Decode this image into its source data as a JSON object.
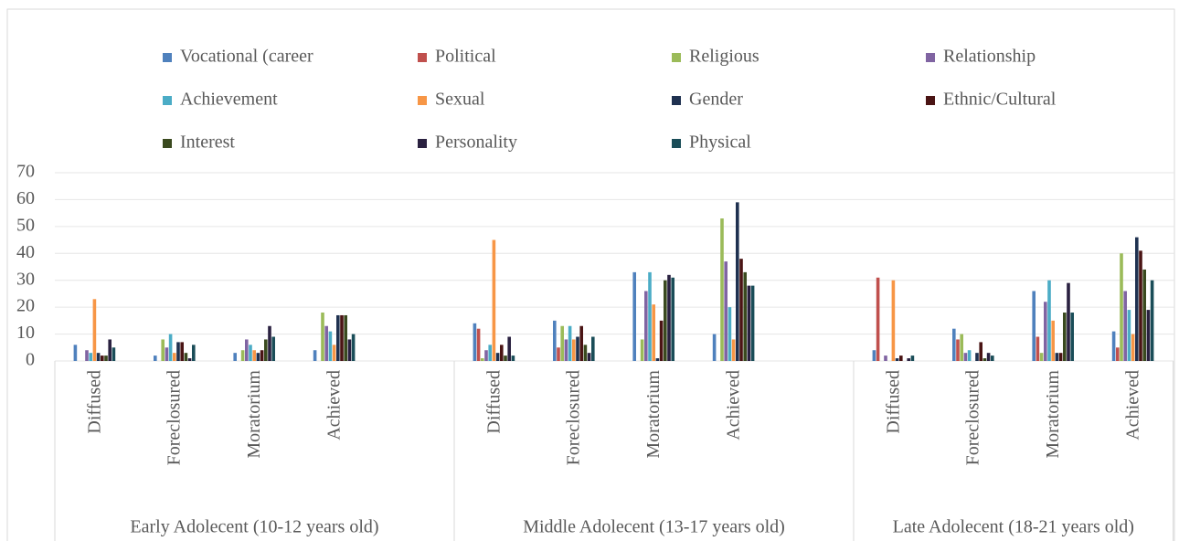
{
  "chart_data": {
    "type": "bar",
    "groups": [
      {
        "name": "Early Adolecent (10-12 years old)",
        "size": 5
      },
      {
        "name": "Middle Adolecent (13-17 years old)",
        "size": 5
      },
      {
        "name": "Late Adolecent (18-21 years old)",
        "size": 4
      }
    ],
    "categories": [
      "Diffused",
      "Foreclosured",
      "Moratorium",
      "Achieved",
      null,
      "Diffused",
      "Foreclosured",
      "Moratorium",
      "Achieved",
      null,
      "Diffused",
      "Foreclosured",
      "Moratorium",
      "Achieved"
    ],
    "series": [
      {
        "name": "Vocational (career",
        "color": "#4f81bd",
        "values": [
          6,
          2,
          3,
          4,
          null,
          14,
          15,
          33,
          10,
          null,
          4,
          12,
          26,
          11
        ]
      },
      {
        "name": "Political",
        "color": "#c0504d",
        "values": [
          0,
          0,
          0,
          0,
          null,
          12,
          5,
          0,
          0,
          null,
          31,
          8,
          9,
          5
        ]
      },
      {
        "name": "Religious",
        "color": "#9bbb59",
        "values": [
          0,
          8,
          4,
          18,
          null,
          1,
          13,
          8,
          53,
          null,
          0,
          10,
          3,
          40
        ]
      },
      {
        "name": "Relationship",
        "color": "#8064a2",
        "values": [
          4,
          5,
          8,
          13,
          null,
          4,
          8,
          26,
          37,
          null,
          2,
          3,
          22,
          26
        ]
      },
      {
        "name": "Achievement",
        "color": "#4bacc6",
        "values": [
          3,
          10,
          6,
          11,
          null,
          6,
          13,
          33,
          20,
          null,
          0,
          4,
          30,
          19
        ]
      },
      {
        "name": "Sexual",
        "color": "#f79646",
        "values": [
          23,
          3,
          4,
          6,
          null,
          45,
          8,
          21,
          8,
          null,
          30,
          0,
          15,
          10
        ]
      },
      {
        "name": "Gender",
        "color": "#1f3150",
        "values": [
          3,
          7,
          3,
          17,
          null,
          3,
          9,
          1,
          59,
          null,
          1,
          3,
          3,
          46
        ]
      },
      {
        "name": "Ethnic/Cultural",
        "color": "#4a1414",
        "values": [
          2,
          7,
          4,
          17,
          null,
          6,
          13,
          15,
          38,
          null,
          2,
          7,
          3,
          41
        ]
      },
      {
        "name": "Interest",
        "color": "#3a4a1f",
        "values": [
          2,
          3,
          8,
          17,
          null,
          2,
          6,
          30,
          33,
          null,
          0,
          1,
          18,
          34
        ]
      },
      {
        "name": "Personality",
        "color": "#2a2140",
        "values": [
          8,
          1,
          13,
          8,
          null,
          9,
          3,
          32,
          28,
          null,
          1,
          3,
          29,
          19
        ]
      },
      {
        "name": "Physical",
        "color": "#1a4d58",
        "values": [
          5,
          6,
          9,
          10,
          null,
          2,
          9,
          31,
          28,
          null,
          2,
          2,
          18,
          30
        ]
      }
    ],
    "ylim": [
      0,
      70
    ],
    "yticks": [
      0,
      10,
      20,
      30,
      40,
      50,
      60,
      70
    ],
    "grid": true
  }
}
